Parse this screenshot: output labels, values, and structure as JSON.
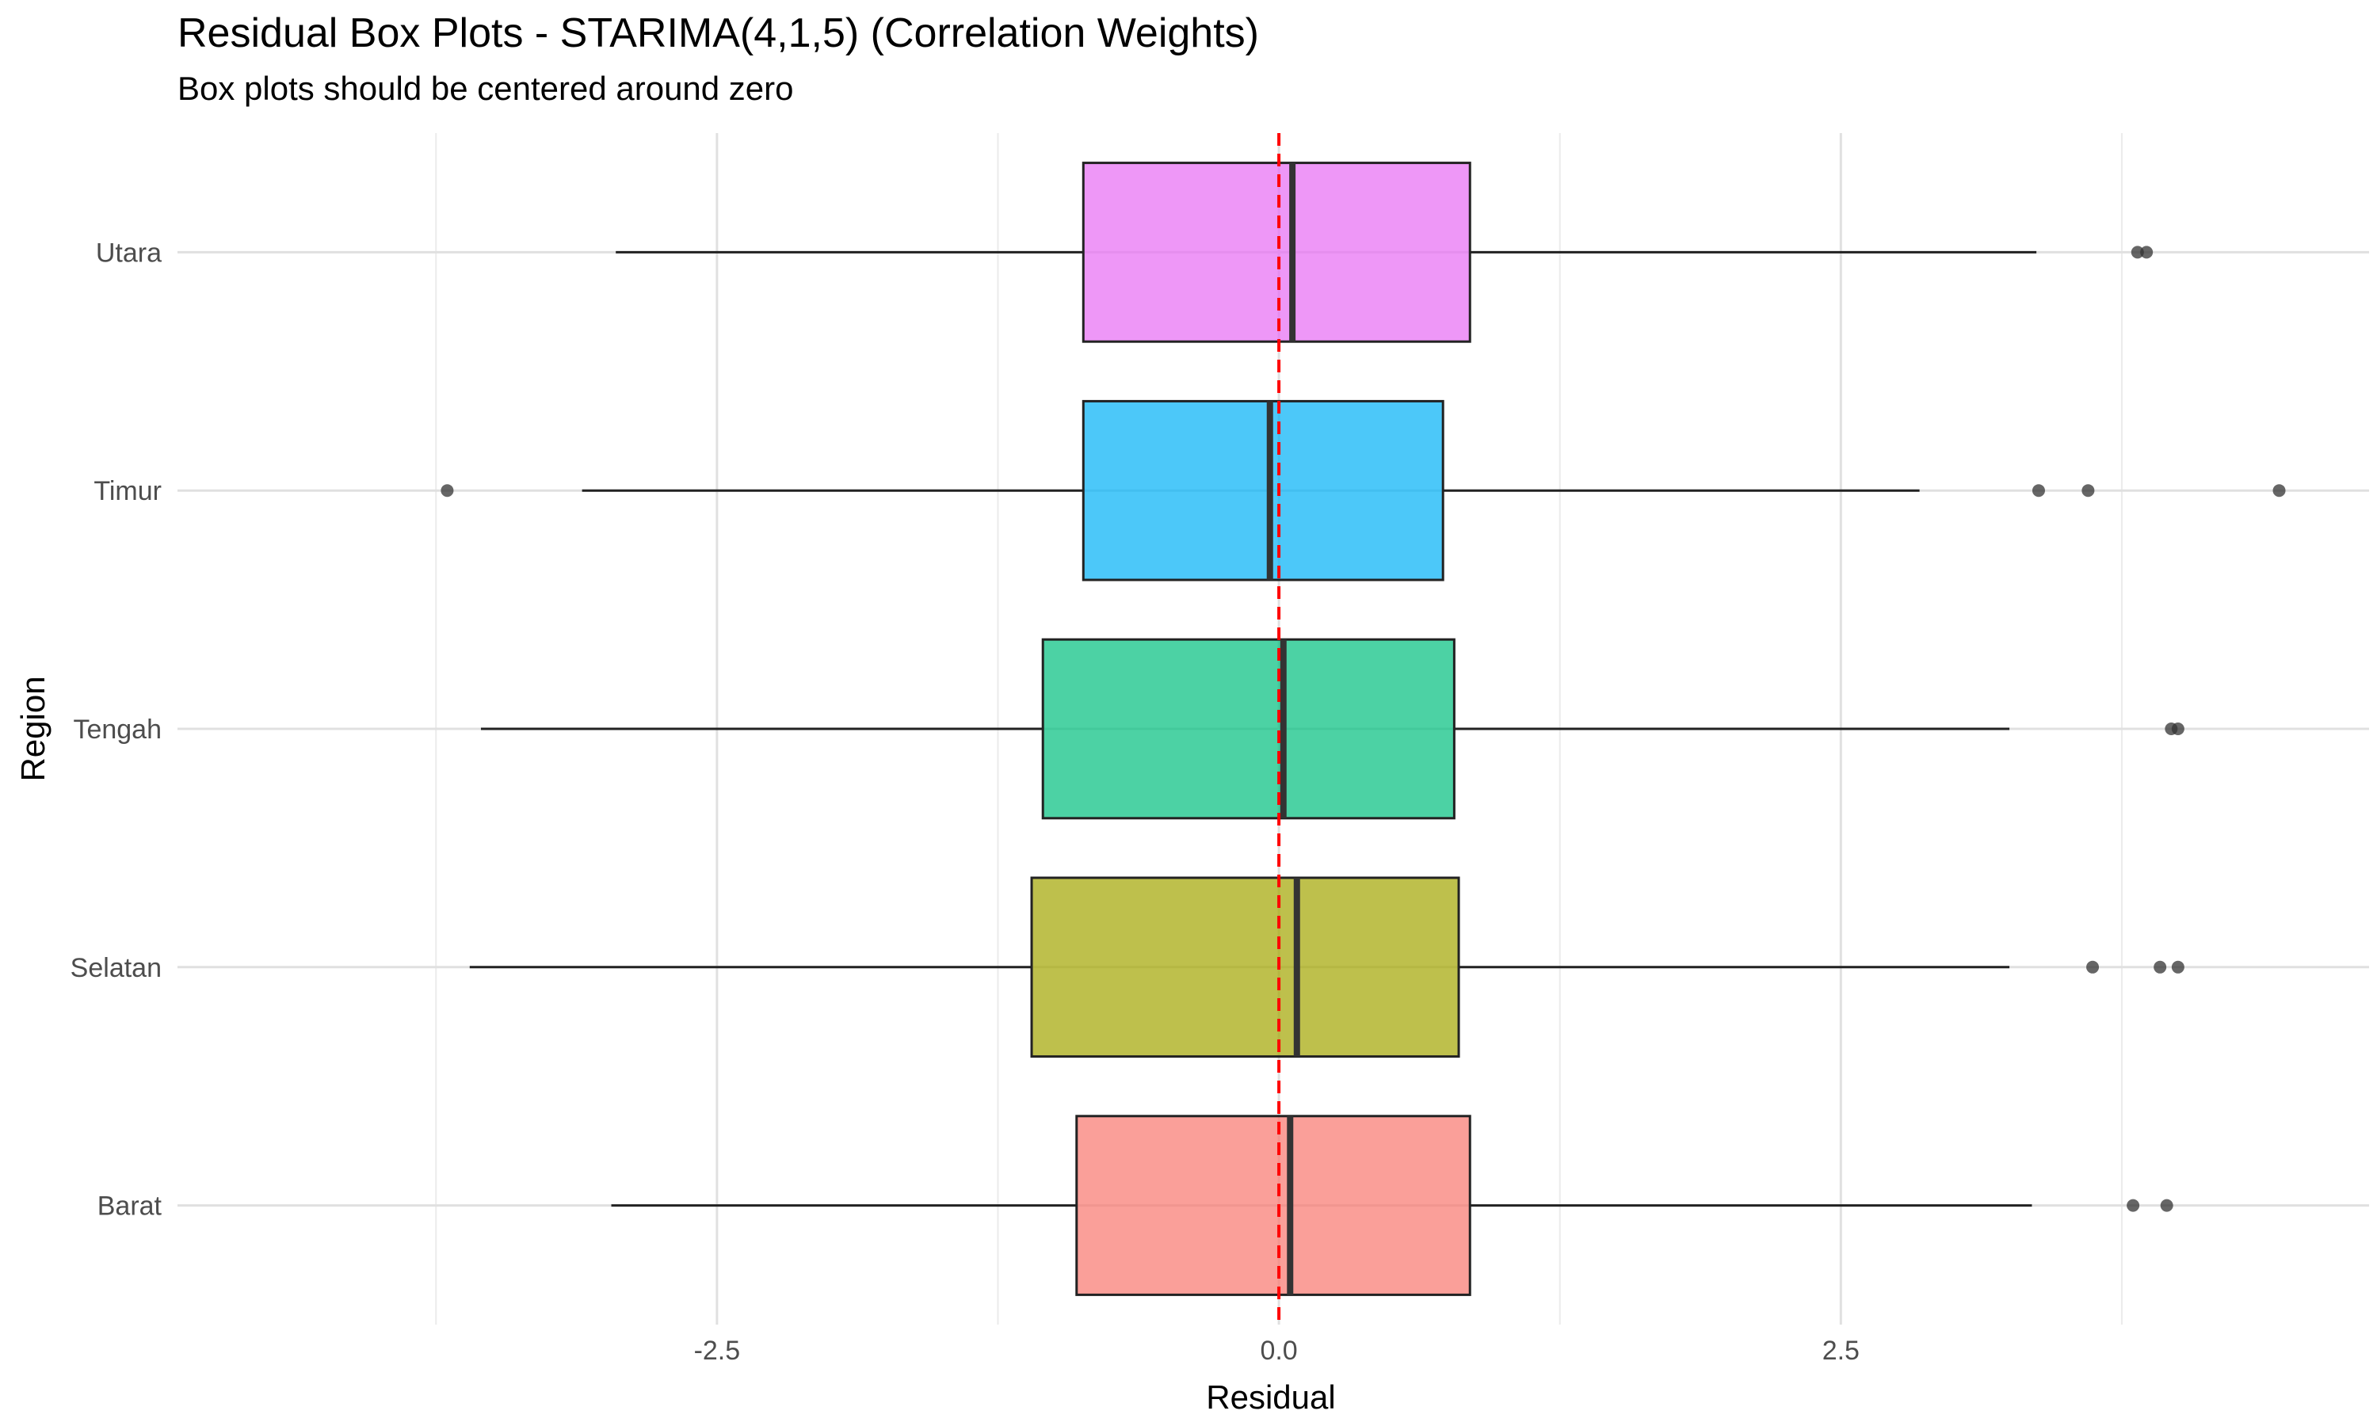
{
  "chart_data": {
    "type": "boxplot",
    "title": "Residual Box Plots - STARIMA(4,1,5) (Correlation Weights)",
    "subtitle": "Box plots should be centered around zero",
    "xlabel": "Residual",
    "ylabel": "Region",
    "xlim": [
      -4.9,
      4.85
    ],
    "x_ticks": [
      {
        "value": -2.5,
        "label": "-2.5"
      },
      {
        "value": 0,
        "label": "0.0"
      },
      {
        "value": 2.5,
        "label": "2.5"
      }
    ],
    "x_minor_ticks": [
      -3.75,
      -1.25,
      1.25,
      3.75
    ],
    "reference_line": {
      "value": 0,
      "color": "#ff0000",
      "style": "dashed"
    },
    "grid": true,
    "legend": "none",
    "categories": [
      "Barat",
      "Selatan",
      "Tengah",
      "Timur",
      "Utara"
    ],
    "series": [
      {
        "name": "Barat",
        "color": "#f8766d",
        "whisker_low": -2.97,
        "q1": -0.9,
        "median": 0.05,
        "q3": 0.85,
        "whisker_high": 3.35,
        "outliers": [
          3.8,
          3.95
        ]
      },
      {
        "name": "Selatan",
        "color": "#a3a500",
        "whisker_low": -3.6,
        "q1": -1.1,
        "median": 0.08,
        "q3": 0.8,
        "whisker_high": 3.25,
        "outliers": [
          3.62,
          3.92,
          4.0
        ]
      },
      {
        "name": "Tengah",
        "color": "#00bf7d",
        "whisker_low": -3.55,
        "q1": -1.05,
        "median": 0.02,
        "q3": 0.78,
        "whisker_high": 3.25,
        "outliers": [
          3.97,
          4.0
        ]
      },
      {
        "name": "Timur",
        "color": "#00b0f6",
        "whisker_low": -3.1,
        "q1": -0.87,
        "median": -0.04,
        "q3": 0.73,
        "whisker_high": 2.85,
        "outliers": [
          -3.7,
          3.38,
          3.6,
          4.45
        ]
      },
      {
        "name": "Utara",
        "color": "#e76bf3",
        "whisker_low": -2.95,
        "q1": -0.87,
        "median": 0.06,
        "q3": 0.85,
        "whisker_high": 3.37,
        "outliers": [
          3.82,
          3.86
        ]
      }
    ]
  }
}
